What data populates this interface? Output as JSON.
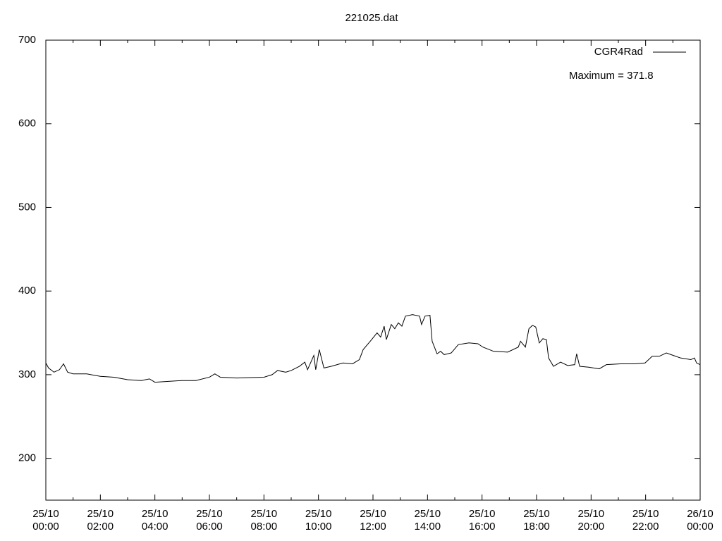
{
  "chart_data": {
    "type": "line",
    "title": "221025.dat",
    "annotation": "Maximum = 371.8",
    "legend": "top-right",
    "grid": false,
    "xlim": [
      0,
      24
    ],
    "ylim": [
      150,
      700
    ],
    "yticks": [
      200,
      300,
      400,
      500,
      600,
      700
    ],
    "xticks": [
      {
        "value": 0,
        "label": "25/10\n00:00"
      },
      {
        "value": 2,
        "label": "25/10\n02:00"
      },
      {
        "value": 4,
        "label": "25/10\n04:00"
      },
      {
        "value": 6,
        "label": "25/10\n06:00"
      },
      {
        "value": 8,
        "label": "25/10\n08:00"
      },
      {
        "value": 10,
        "label": "25/10\n10:00"
      },
      {
        "value": 12,
        "label": "25/10\n12:00"
      },
      {
        "value": 14,
        "label": "25/10\n14:00"
      },
      {
        "value": 16,
        "label": "25/10\n16:00"
      },
      {
        "value": 18,
        "label": "25/10\n18:00"
      },
      {
        "value": 20,
        "label": "25/10\n20:00"
      },
      {
        "value": 22,
        "label": "25/10\n22:00"
      },
      {
        "value": 24,
        "label": "26/10\n00:00"
      }
    ],
    "series": [
      {
        "name": "CGR4Rad",
        "color": "#000000",
        "x": [
          0,
          0.1,
          0.3,
          0.5,
          0.65,
          0.8,
          1,
          1.5,
          2,
          2.5,
          3,
          3.5,
          3.8,
          4,
          4.5,
          5,
          5.5,
          6,
          6.2,
          6.4,
          7,
          8,
          8.3,
          8.5,
          8.8,
          9,
          9.3,
          9.5,
          9.6,
          9.83,
          9.9,
          10.03,
          10.2,
          10.47,
          10.9,
          11.25,
          11.5,
          11.64,
          11.9,
          12.15,
          12.28,
          12.41,
          12.49,
          12.67,
          12.8,
          12.93,
          13.06,
          13.19,
          13.45,
          13.71,
          13.78,
          13.91,
          14.09,
          14.17,
          14.35,
          14.48,
          14.61,
          14.87,
          15.13,
          15.52,
          15.85,
          16.03,
          16.42,
          16.94,
          17.33,
          17.41,
          17.59,
          17.72,
          17.85,
          17.97,
          18.1,
          18.23,
          18.36,
          18.44,
          18.62,
          18.88,
          19.14,
          19.4,
          19.47,
          19.58,
          19.91,
          20.3,
          20.56,
          21.08,
          21.59,
          21.98,
          22.24,
          22.5,
          22.76,
          23.02,
          23.28,
          23.66,
          23.79,
          23.87,
          24
        ],
        "values": [
          314,
          308,
          303,
          306,
          313,
          303,
          301,
          301,
          298,
          297,
          294,
          293,
          295,
          291,
          292,
          293,
          293,
          297,
          301,
          297,
          296,
          297,
          300,
          305,
          303,
          305,
          310,
          315,
          306,
          323,
          306,
          330,
          308,
          310,
          314,
          313,
          318,
          330,
          340,
          350,
          345,
          358,
          342,
          360,
          355,
          362,
          358,
          370,
          371.8,
          370,
          360,
          370,
          371,
          340,
          325,
          328,
          324,
          326,
          336,
          338,
          337,
          333,
          328,
          327,
          333,
          340,
          333,
          355,
          359,
          357,
          338,
          343,
          342,
          320,
          310,
          315,
          311,
          312,
          325,
          310,
          309,
          307,
          312,
          313,
          313,
          314,
          322,
          322,
          326,
          323,
          320,
          318,
          320,
          314,
          312
        ]
      }
    ]
  }
}
